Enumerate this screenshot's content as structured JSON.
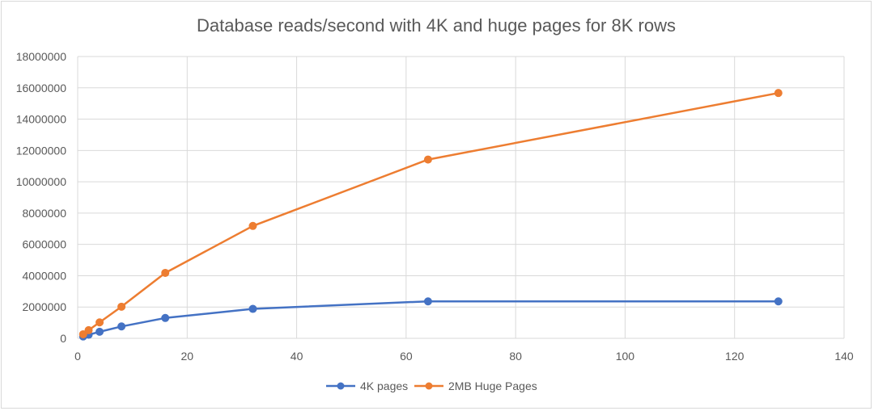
{
  "chart_data": {
    "type": "line",
    "title": "Database reads/second with 4K and huge pages for 8K rows",
    "xlabel": "",
    "ylabel": "",
    "xlim": [
      0,
      140
    ],
    "ylim": [
      0,
      18000000
    ],
    "x_ticks": [
      0,
      20,
      40,
      60,
      80,
      100,
      120,
      140
    ],
    "y_ticks": [
      0,
      2000000,
      4000000,
      6000000,
      8000000,
      10000000,
      12000000,
      14000000,
      16000000,
      18000000
    ],
    "grid": "vertical-and-horizontal",
    "legend_position": "bottom",
    "series": [
      {
        "name": "4K pages",
        "color": "#4472c4",
        "x": [
          1,
          2,
          4,
          8,
          16,
          32,
          64,
          128
        ],
        "y": [
          120000,
          230000,
          420000,
          760000,
          1300000,
          1880000,
          2360000,
          2360000
        ]
      },
      {
        "name": "2MB Huge Pages",
        "color": "#ed7d31",
        "x": [
          1,
          2,
          4,
          8,
          16,
          32,
          64,
          128
        ],
        "y": [
          260000,
          520000,
          1020000,
          2020000,
          4180000,
          7180000,
          11420000,
          15670000
        ]
      }
    ]
  }
}
